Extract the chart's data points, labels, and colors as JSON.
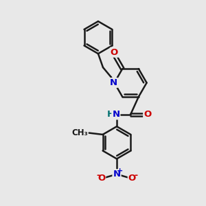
{
  "bg_color": "#e8e8e8",
  "bond_color": "#1a1a1a",
  "bond_width": 1.8,
  "atom_colors": {
    "N": "#0000cc",
    "O": "#cc0000",
    "H": "#007070",
    "C": "#1a1a1a"
  },
  "font_size": 9.5
}
